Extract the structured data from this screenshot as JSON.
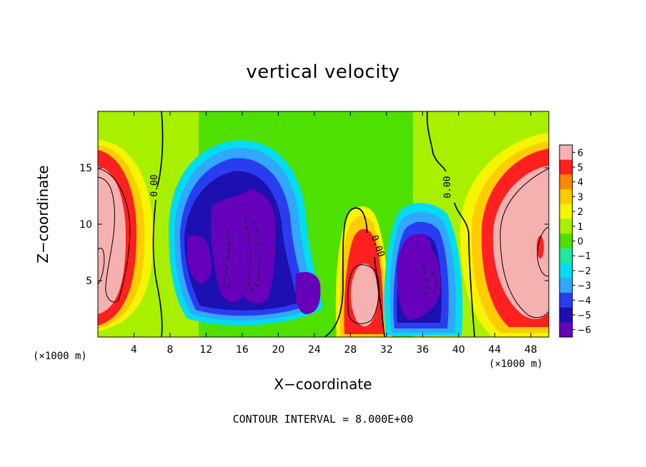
{
  "chart_data": {
    "type": "heatmap",
    "title": "vertical velocity",
    "xlabel": "X−coordinate",
    "ylabel": "Z−coordinate",
    "x_unit_left": "(×1000 m)",
    "x_unit_right": "(×1000 m)",
    "footer": "CONTOUR INTERVAL = 8.000E+00",
    "xlim": [
      0,
      50
    ],
    "ylim": [
      0,
      20
    ],
    "x_ticks": [
      4,
      8,
      12,
      16,
      20,
      24,
      28,
      32,
      36,
      40,
      44,
      48
    ],
    "y_ticks": [
      5,
      10,
      15
    ],
    "colorbar": {
      "range": [
        -6,
        6
      ],
      "tick_values": [
        6,
        5,
        4,
        3,
        2,
        1,
        0,
        -1,
        -2,
        -3,
        -4,
        -5,
        -6
      ],
      "tick_labels": [
        "6",
        "5",
        "4",
        "3",
        "2",
        "1",
        "0",
        "−1",
        "−2",
        "−3",
        "−4",
        "−5",
        "−6"
      ],
      "colors": [
        "#f5b0b0",
        "#ff2020",
        "#ff8800",
        "#ffcc00",
        "#f5f500",
        "#a8f000",
        "#4ee000",
        "#20e8a0",
        "#00ddf0",
        "#30a8ff",
        "#2a3cf0",
        "#1c10b0",
        "#6600bb"
      ]
    },
    "contour_labels": [
      "0.00",
      "0.00",
      "0.00"
    ],
    "features": [
      {
        "kind": "updraft",
        "x": 2.5,
        "z": 8,
        "w": 6
      },
      {
        "kind": "downdraft",
        "x": 16,
        "z": 9,
        "w": -6
      },
      {
        "kind": "downdraft",
        "x": 22,
        "z": 4,
        "w": -6
      },
      {
        "kind": "updraft",
        "x": 29.5,
        "z": 6,
        "w": 6
      },
      {
        "kind": "downdraft",
        "x": 35,
        "z": 6,
        "w": -6
      },
      {
        "kind": "updraft",
        "x": 47,
        "z": 8,
        "w": 6
      }
    ]
  }
}
